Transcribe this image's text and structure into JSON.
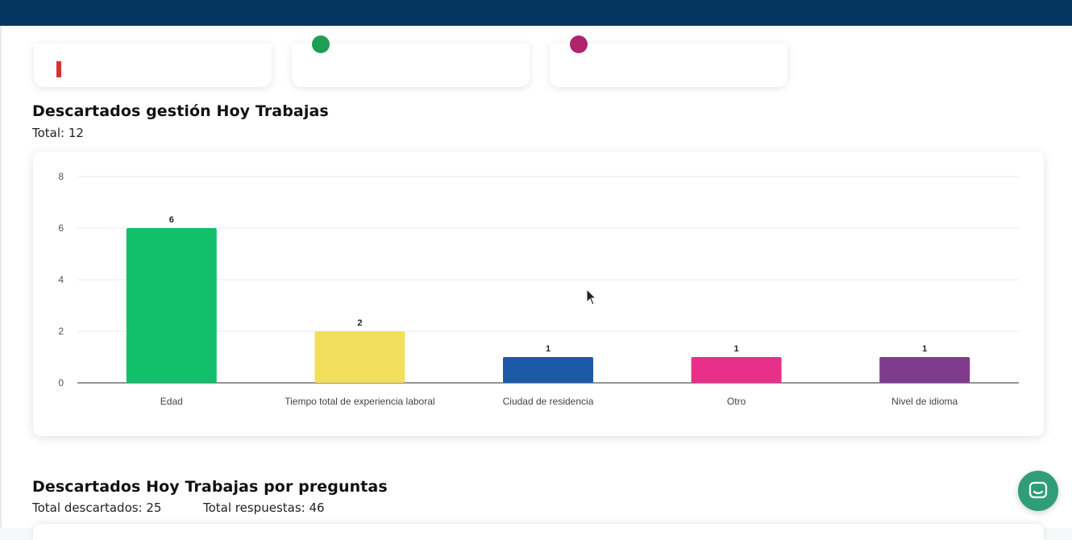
{
  "colors": {
    "topbar": "#073561",
    "card1_accent": "#d9342b",
    "card2_accent": "#1f9d55",
    "card3_accent": "#b0246b",
    "chat": "#2f9e78"
  },
  "section1": {
    "title": "Descartados gestión Hoy Trabajas",
    "total": "Total: 12"
  },
  "section2": {
    "title": "Descartados Hoy Trabajas por preguntas",
    "total_descartados": "Total descartados: 25",
    "total_respuestas": "Total respuestas: 46"
  },
  "chat_button": {
    "icon": "chat-bubble-icon"
  },
  "chart_data": {
    "type": "bar",
    "categories": [
      "Edad",
      "Tiempo total de experiencia laboral",
      "Ciudad de residencia",
      "Otro",
      "Nivel de idioma"
    ],
    "values": [
      6,
      2,
      1,
      1,
      1
    ],
    "colors": [
      "#12bf6a",
      "#f2df5c",
      "#1c5aa8",
      "#e8308a",
      "#7f3b8c"
    ],
    "ylim": [
      0,
      8
    ],
    "yticks": [
      0,
      2,
      4,
      6,
      8
    ],
    "grid": true,
    "title": "",
    "xlabel": "",
    "ylabel": ""
  }
}
